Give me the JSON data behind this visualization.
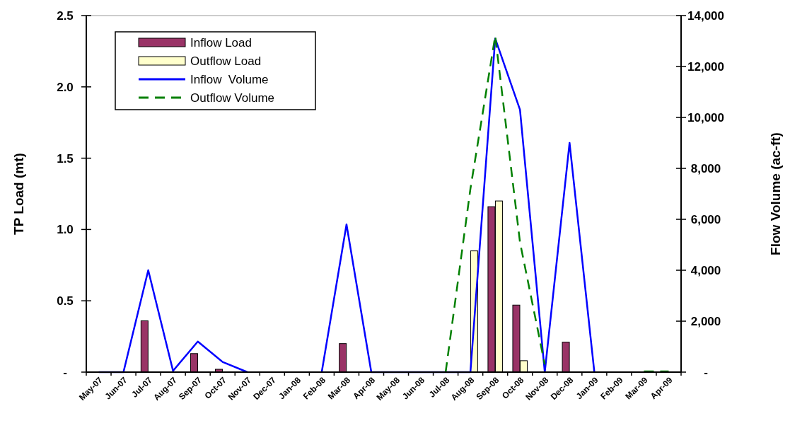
{
  "chart_data": {
    "type": "bar",
    "ylabel": "TP Load (mt)",
    "y2label": "Flow Volume (ac-ft)",
    "categories": [
      "May-07",
      "Jun-07",
      "Jul-07",
      "Aug-07",
      "Sep-07",
      "Oct-07",
      "Nov-07",
      "Dec-07",
      "Jan-08",
      "Feb-08",
      "Mar-08",
      "Apr-08",
      "May-08",
      "Jun-08",
      "Jul-08",
      "Aug-08",
      "Sep-08",
      "Oct-08",
      "Nov-08",
      "Dec-08",
      "Jan-09",
      "Feb-09",
      "Mar-09",
      "Apr-09"
    ],
    "series": [
      {
        "name": "Inflow Load",
        "color": "#993366",
        "values": [
          0,
          0,
          0.36,
          0,
          0.13,
          0.02,
          0,
          0,
          0,
          0,
          0.2,
          0,
          0,
          0,
          0,
          0,
          1.16,
          0.47,
          0,
          0.21,
          0,
          0,
          0,
          0
        ]
      },
      {
        "name": "Outflow Load",
        "color": "#ffffcc",
        "values": [
          0,
          0,
          0,
          0,
          0,
          0,
          0,
          0,
          0,
          0,
          0,
          0,
          0,
          0,
          0,
          0.85,
          1.2,
          0.08,
          0,
          0,
          0,
          0,
          0,
          0
        ]
      },
      {
        "name": "Inflow  Volume",
        "type": "line",
        "axis": "y2",
        "color": "#0000ff",
        "line_style": "solid",
        "values": [
          0,
          0,
          4000,
          50,
          1200,
          400,
          0,
          null,
          null,
          0,
          5800,
          0,
          0,
          0,
          0,
          0,
          13100,
          10300,
          0,
          9000,
          0,
          null,
          null,
          null
        ]
      },
      {
        "name": "Outflow Volume",
        "type": "line",
        "axis": "y2",
        "color": "#008000",
        "line_style": "dashed",
        "values": [
          null,
          null,
          null,
          null,
          null,
          null,
          null,
          null,
          null,
          null,
          null,
          null,
          null,
          null,
          0,
          7200,
          13200,
          5100,
          300,
          null,
          null,
          null,
          30,
          30
        ]
      }
    ],
    "ylim": [
      0,
      2.5
    ],
    "yticks": [
      {
        "value": 0,
        "label": "-"
      },
      {
        "value": 0.5,
        "label": "0.5"
      },
      {
        "value": 1,
        "label": "1.0"
      },
      {
        "value": 1.5,
        "label": "1.5"
      },
      {
        "value": 2,
        "label": "2.0"
      },
      {
        "value": 2.5,
        "label": "2.5"
      }
    ],
    "y2lim": [
      0,
      14000
    ],
    "y2ticks": [
      {
        "value": 0,
        "label": "-"
      },
      {
        "value": 2000,
        "label": "2,000"
      },
      {
        "value": 4000,
        "label": "4,000"
      },
      {
        "value": 6000,
        "label": "6,000"
      },
      {
        "value": 8000,
        "label": "8,000"
      },
      {
        "value": 10000,
        "label": "10,000"
      },
      {
        "value": 12000,
        "label": "12,000"
      },
      {
        "value": 14000,
        "label": "14,000"
      }
    ],
    "legend": "top left"
  }
}
